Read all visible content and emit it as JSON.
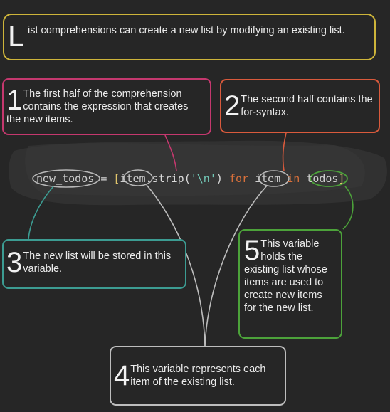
{
  "title_note": {
    "initial": "L",
    "text": "ist comprehensions can create a new list by modifying an existing list."
  },
  "code": {
    "var": "new_todos",
    "eq": "=",
    "open_bracket": "[",
    "item1": "item",
    "method": ".strip(",
    "string": "'\\n'",
    "close_paren": ")",
    "kw_for": "for",
    "item2": "item",
    "kw_in": "in",
    "iterable": "todos",
    "close_bracket": "]"
  },
  "notes": [
    {
      "number": "1",
      "text": "The first half of the comprehension contains the expression that creates the new items."
    },
    {
      "number": "2",
      "text": "The second half contains the for-syntax."
    },
    {
      "number": "3",
      "text": "The new list will be stored in this variable."
    },
    {
      "number": "4",
      "text": "This variable represents each item of the existing list."
    },
    {
      "number": "5",
      "text": "This variable holds the existing list whose items are used to create new items for the new list."
    }
  ],
  "colors": {
    "background": "#262626",
    "title_border": "#cdb43a",
    "note1_border": "#c5386e",
    "note2_border": "#d95a3c",
    "note3_border": "#3c9c92",
    "note4_border": "#bdbdbd",
    "note5_border": "#4ca23a"
  }
}
